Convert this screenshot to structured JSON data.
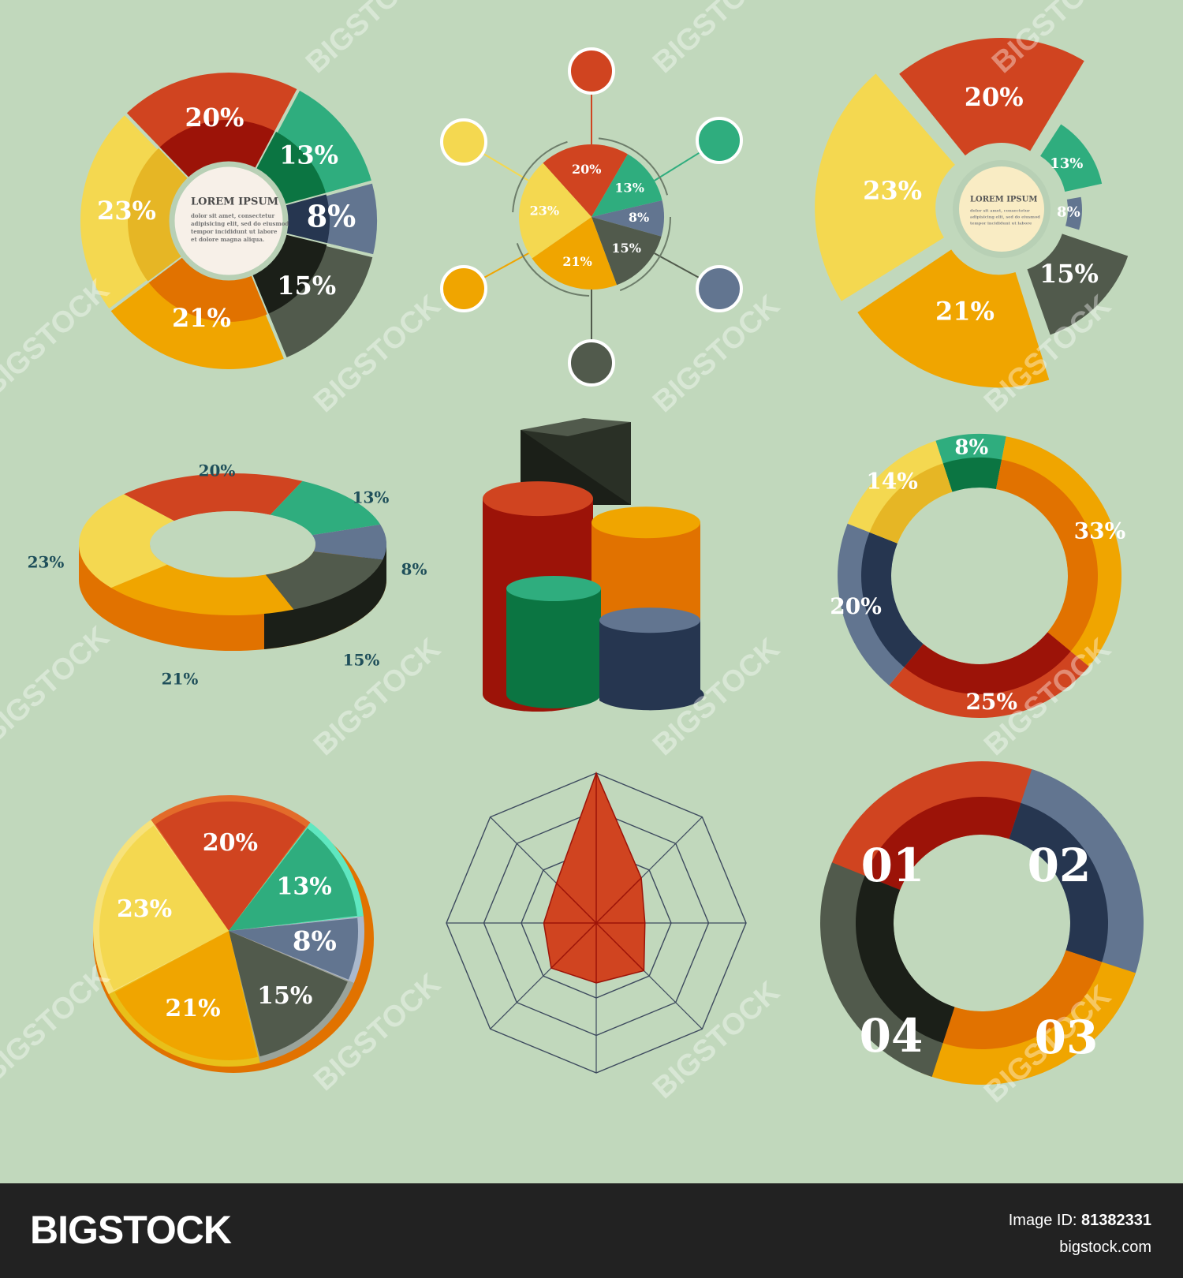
{
  "colors": {
    "red": "#d04420",
    "red_dark": "#9c1308",
    "green": "#2fad7e",
    "green_dark": "#0b7542",
    "blue": "#627590",
    "blue_dark": "#263650",
    "gray": "#515a4c",
    "gray_dark": "#1b1f18",
    "orange": "#f0a500",
    "orange_dark": "#e17200",
    "yellow": "#f4d850",
    "yellow_dark": "#e6b625",
    "background": "#c1d8bc"
  },
  "chart_data": [
    {
      "type": "pie",
      "style": "donut-with-center-text",
      "categories": [
        "20%",
        "13%",
        "8%",
        "15%",
        "21%",
        "23%"
      ],
      "values": [
        20,
        13,
        8,
        15,
        21,
        23
      ],
      "center": {
        "title": "LOREM IPSUM",
        "lines": [
          "dolor sit amet, consectetur",
          "adipisicing elit, sed do eiusmod",
          "tempor incididunt ut labore",
          "et dolore magna aliqua."
        ]
      }
    },
    {
      "type": "pie",
      "style": "pie-with-connected-nodes",
      "categories": [
        "20%",
        "13%",
        "8%",
        "15%",
        "21%",
        "23%"
      ],
      "values": [
        20,
        13,
        8,
        15,
        21,
        23
      ]
    },
    {
      "type": "pie",
      "style": "exploded-radial",
      "categories": [
        "20%",
        "13%",
        "8%",
        "15%",
        "21%",
        "23%"
      ],
      "values": [
        20,
        13,
        8,
        15,
        21,
        23
      ],
      "center": {
        "title": "LOREM IPSUM",
        "lines": [
          "dolor sit amet, consectetur",
          "adipisicing elit, sed do eiusmod",
          "tempor incididunt ut labore"
        ]
      }
    },
    {
      "type": "pie",
      "style": "3d-ring",
      "categories": [
        "20%",
        "13%",
        "8%",
        "15%",
        "21%",
        "23%"
      ],
      "values": [
        20,
        13,
        8,
        15,
        21,
        23
      ]
    },
    {
      "type": "bar",
      "style": "3d-cylinder-segments",
      "categories": [
        "black",
        "red",
        "orange",
        "green",
        "blue"
      ],
      "values": [
        100,
        74,
        65,
        40,
        28
      ]
    },
    {
      "type": "pie",
      "style": "donut",
      "categories": [
        "8%",
        "33%",
        "25%",
        "20%",
        "14%"
      ],
      "values": [
        8,
        33,
        25,
        20,
        14
      ]
    },
    {
      "type": "pie",
      "style": "3d-pie",
      "categories": [
        "20%",
        "13%",
        "8%",
        "15%",
        "21%",
        "23%"
      ],
      "values": [
        20,
        13,
        8,
        15,
        21,
        23
      ]
    },
    {
      "type": "scatter",
      "style": "radar",
      "axes": 8,
      "rings": 4,
      "range": [
        0,
        4
      ],
      "values": [
        4,
        1.7,
        1.3,
        1.8,
        1.6,
        1.7,
        1.4,
        1.5
      ]
    },
    {
      "type": "pie",
      "style": "segmented-ring",
      "categories": [
        "01",
        "02",
        "03",
        "04"
      ],
      "values": [
        25,
        25,
        25,
        25
      ]
    }
  ],
  "watermark": {
    "tile_text": "BIGSTOCK",
    "short_text": "BIG"
  },
  "footer": {
    "brand": "BIGSTOCK",
    "image_id_label": "Image ID:",
    "image_id": "81382331",
    "site": "bigstock.com"
  }
}
